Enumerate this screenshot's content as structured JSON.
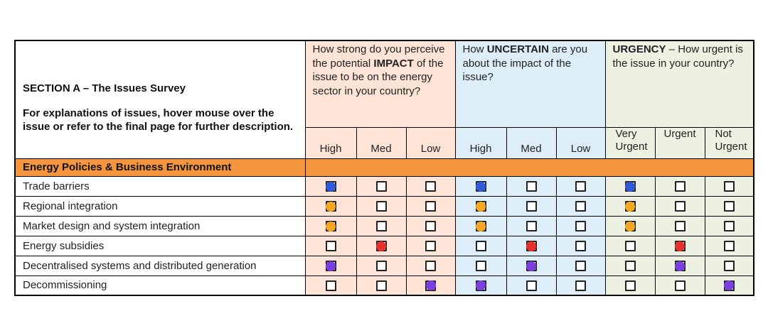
{
  "section_heading": "SECTION A – The Issues Survey",
  "instructions": "For explanations of issues, hover mouse over the issue or refer to the final page for further description.",
  "questions": {
    "impact": {
      "pre": "How strong do you perceive the potential ",
      "bold": "IMPACT",
      "post": " of the issue to be on the energy sector in your country?"
    },
    "uncertain": {
      "pre": "How ",
      "bold": "UNCERTAIN",
      "post": " are you about the impact of the issue?"
    },
    "urgency": {
      "pre": "",
      "bold": "URGENCY",
      "post": " – How urgent is the issue in your country?"
    }
  },
  "column_labels": {
    "impact": [
      "High",
      "Med",
      "Low"
    ],
    "uncertain": [
      "High",
      "Med",
      "Low"
    ],
    "urgency": [
      "Very Urgent",
      "Urgent",
      "Not Urgent"
    ]
  },
  "category": "Energy Policies & Business Environment",
  "colors": {
    "impact_bg": "#fde4d6",
    "uncertain_bg": "#ddeef8",
    "urgency_bg": "#ecf1e1",
    "category_bg": "#f4953f",
    "blue": "#2f5bd9",
    "orange": "#f5a623",
    "red": "#e5322d",
    "purple": "#7b3fe0"
  },
  "issues": [
    {
      "label": "Trade barriers",
      "marks": {
        "impact": 0,
        "uncertain": 0,
        "urgency": 0
      },
      "color": "blue"
    },
    {
      "label": "Regional integration",
      "marks": {
        "impact": 0,
        "uncertain": 0,
        "urgency": 0
      },
      "color": "orange"
    },
    {
      "label": "Market design and system integration",
      "marks": {
        "impact": 0,
        "uncertain": 0,
        "urgency": 0
      },
      "color": "orange"
    },
    {
      "label": "Energy subsidies",
      "marks": {
        "impact": 1,
        "uncertain": 1,
        "urgency": 1
      },
      "color": "red"
    },
    {
      "label": "Decentralised systems and distributed generation",
      "marks": {
        "impact": 0,
        "uncertain": 1,
        "urgency": 1
      },
      "color": "purple"
    },
    {
      "label": "Decommissioning",
      "marks": {
        "impact": 2,
        "uncertain": 0,
        "urgency": 2
      },
      "color": "purple"
    }
  ]
}
